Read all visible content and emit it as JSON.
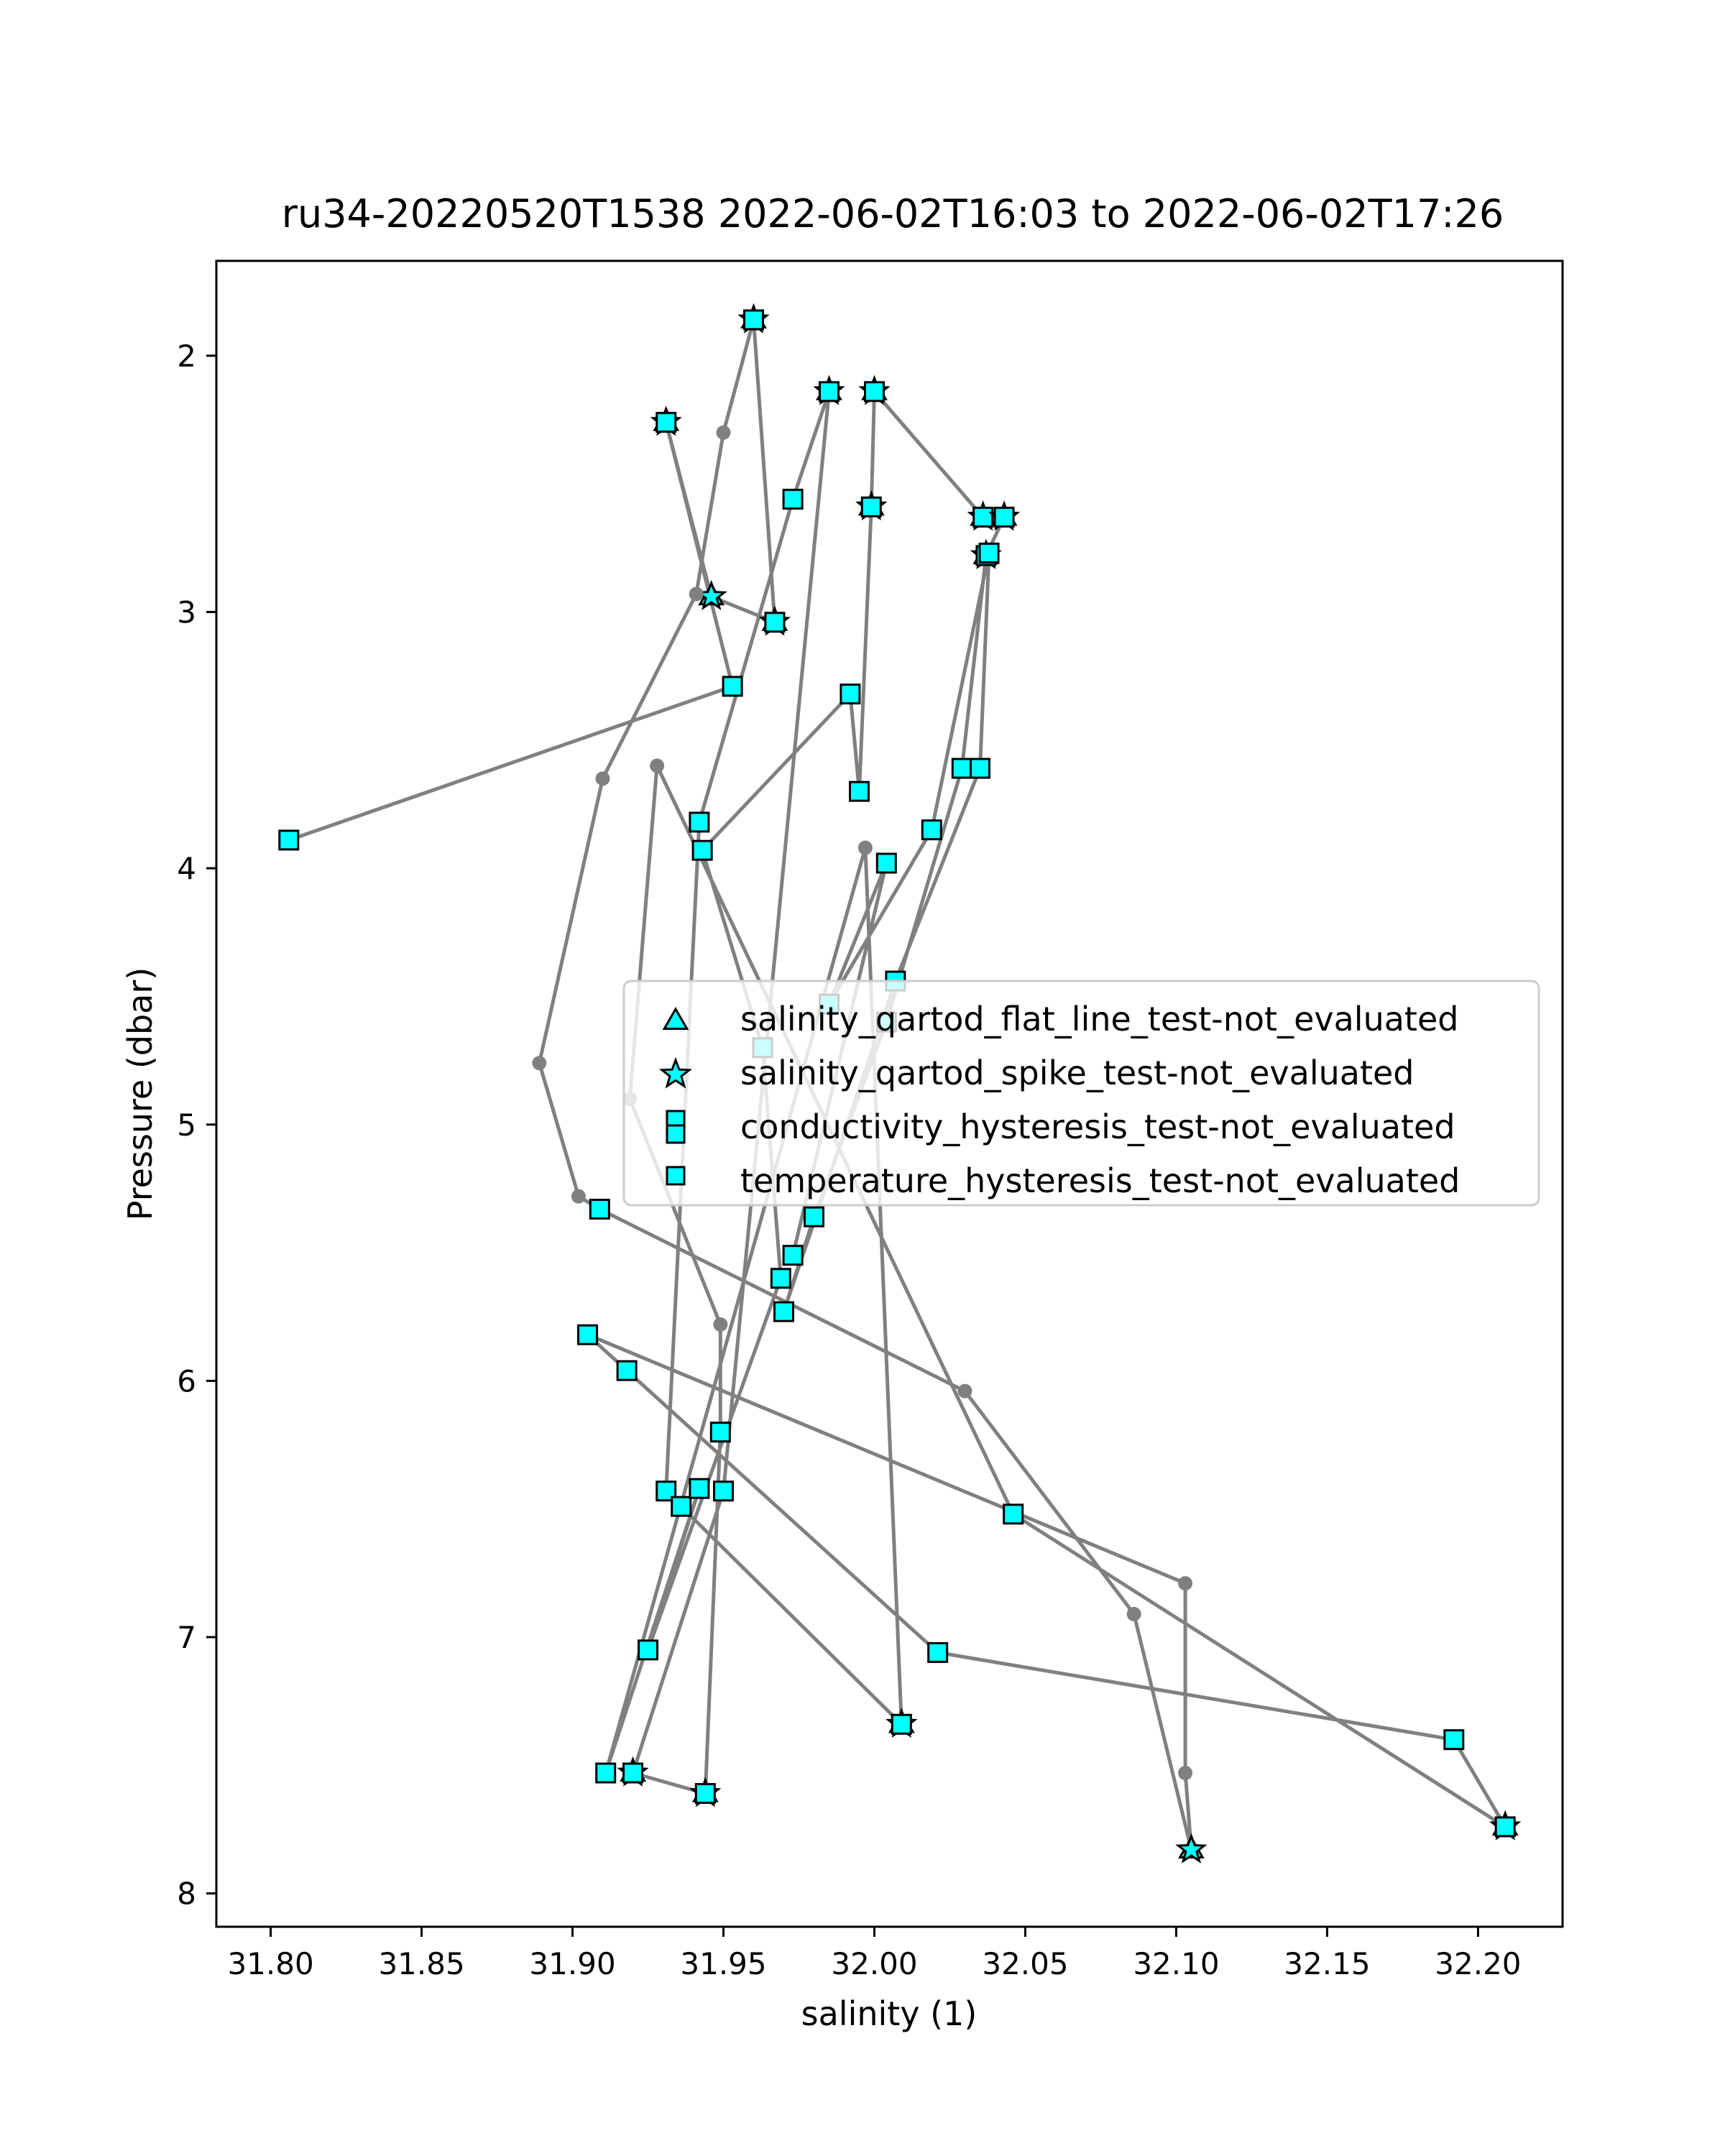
{
  "chart_data": {
    "type": "scatter",
    "title": "ru34-20220520T1538 2022-06-02T16:03 to 2022-06-02T17:26",
    "xlabel": "salinity (1)",
    "ylabel": "Pressure (dbar)",
    "xlim": [
      31.782,
      32.228
    ],
    "ylim": [
      8.13,
      1.63
    ],
    "y_inverted": true,
    "grid": false,
    "x_ticks": [
      "31.80",
      "31.85",
      "31.90",
      "31.95",
      "32.00",
      "32.05",
      "32.10",
      "32.15",
      "32.20"
    ],
    "y_ticks": [
      "2",
      "3",
      "4",
      "5",
      "6",
      "7",
      "8"
    ],
    "colors": {
      "line": "#808080",
      "marker_fill": "#00ffff",
      "marker_edge": "#000000"
    },
    "legend": {
      "placement": "center-right",
      "entries": [
        {
          "label": "salinity_qartod_flat_line_test-not_evaluated",
          "marker": "triangle"
        },
        {
          "label": "salinity_qartod_spike_test-not_evaluated",
          "marker": "star"
        },
        {
          "label": "conductivity_hysteresis_test-not_evaluated",
          "marker": "square"
        },
        {
          "label": "temperature_hysteresis_test-not_evaluated",
          "marker": "square"
        }
      ]
    },
    "profile": [
      [
        31.806,
        3.89,
        "sq"
      ],
      [
        31.953,
        3.29,
        "sq"
      ],
      [
        31.931,
        2.26,
        "qc"
      ],
      [
        31.946,
        2.94,
        "ts"
      ],
      [
        31.967,
        3.04,
        "qc"
      ],
      [
        31.96,
        1.86,
        "qc"
      ],
      [
        31.95,
        2.3,
        "pt"
      ],
      [
        31.941,
        2.93,
        "pt"
      ],
      [
        31.91,
        3.65,
        "pt"
      ],
      [
        31.889,
        4.76,
        "pt"
      ],
      [
        31.902,
        5.28,
        "pt"
      ],
      [
        31.909,
        5.33,
        "sq"
      ],
      [
        32.03,
        6.04,
        "pt"
      ],
      [
        32.086,
        6.91,
        "pt"
      ],
      [
        32.105,
        7.83,
        "ts"
      ],
      [
        32.103,
        7.53,
        "pt"
      ],
      [
        32.103,
        6.79,
        "pt"
      ],
      [
        31.905,
        5.82,
        "sq"
      ],
      [
        31.918,
        5.96,
        "sq"
      ],
      [
        32.021,
        7.06,
        "sq"
      ],
      [
        32.192,
        7.4,
        "sq"
      ],
      [
        32.209,
        7.74,
        "qc"
      ],
      [
        32.046,
        6.52,
        "sq"
      ],
      [
        31.928,
        3.6,
        "pt"
      ],
      [
        31.919,
        4.9,
        "pt"
      ],
      [
        31.949,
        5.78,
        "pt"
      ],
      [
        31.949,
        6.2,
        "sq"
      ],
      [
        31.944,
        7.61,
        "qc"
      ],
      [
        31.92,
        7.53,
        "qc"
      ],
      [
        31.95,
        6.43,
        "sq"
      ],
      [
        31.985,
        2.14,
        "qc"
      ],
      [
        31.973,
        2.56,
        "sq"
      ],
      [
        31.942,
        3.82,
        "sq"
      ],
      [
        31.931,
        6.43,
        "sq"
      ],
      [
        31.936,
        6.49,
        "sq"
      ],
      [
        32.009,
        7.34,
        "qc"
      ],
      [
        31.997,
        3.92,
        "pt"
      ],
      [
        31.911,
        7.53,
        "sq"
      ],
      [
        31.942,
        6.42,
        "sq"
      ],
      [
        31.925,
        7.05,
        "sq"
      ],
      [
        31.969,
        5.6,
        "sq"
      ],
      [
        31.963,
        4.7,
        "sq"
      ],
      [
        31.943,
        3.93,
        "sq"
      ],
      [
        31.992,
        3.32,
        "sq"
      ],
      [
        31.995,
        3.7,
        "sq"
      ],
      [
        31.999,
        2.59,
        "qc"
      ],
      [
        32.0,
        2.14,
        "qc"
      ],
      [
        32.036,
        2.63,
        "qc"
      ],
      [
        32.043,
        2.63,
        "qc"
      ],
      [
        32.037,
        2.78,
        "qc"
      ],
      [
        32.029,
        3.61,
        "sq"
      ],
      [
        32.004,
        4.6,
        "sq"
      ],
      [
        31.98,
        5.36,
        "sq"
      ],
      [
        31.97,
        5.73,
        "sq"
      ],
      [
        32.007,
        4.44,
        "sq"
      ],
      [
        32.035,
        3.61,
        "sq"
      ],
      [
        32.038,
        2.77,
        "sq"
      ],
      [
        32.019,
        3.85,
        "sq"
      ],
      [
        31.985,
        4.53,
        "sq"
      ],
      [
        32.004,
        3.98,
        "sq"
      ],
      [
        31.973,
        5.51,
        "sq"
      ]
    ]
  }
}
